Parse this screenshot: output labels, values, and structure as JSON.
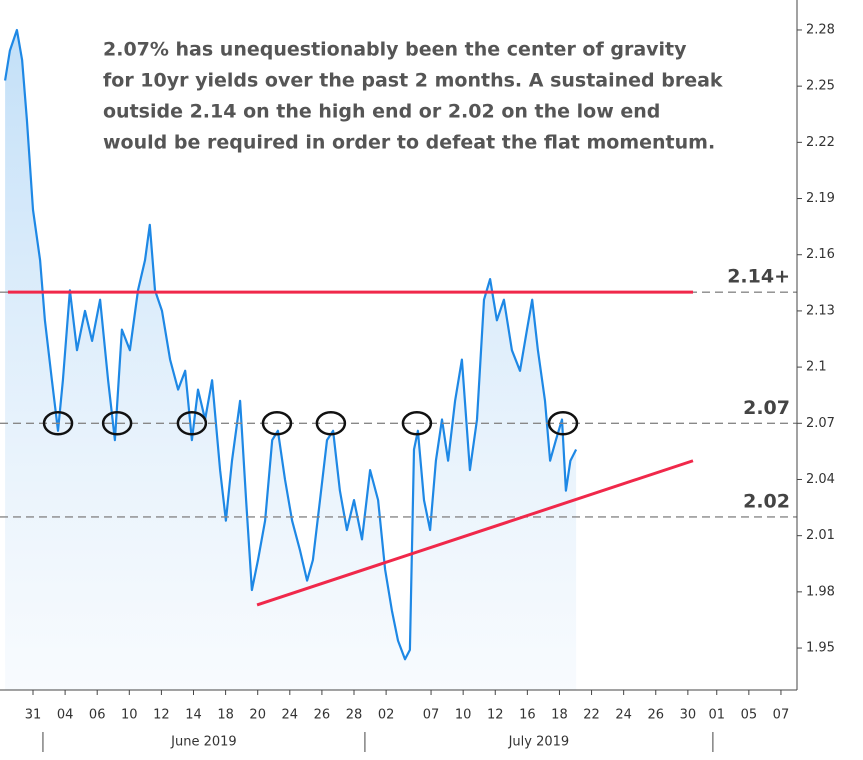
{
  "chart_data": {
    "type": "line",
    "annotation": [
      "2.07% has unequestionably been the center of gravity",
      "for 10yr yields over the past 2 months.  A sustained break",
      "outside 2.14 on the high end or 2.02 on the low end",
      "would be required in order to defeat the flat momentum."
    ],
    "x": [
      -0.87,
      -0.72,
      -0.5,
      -0.34,
      -0.19,
      0,
      0.22,
      0.37,
      0.59,
      0.78,
      0.93,
      1.15,
      1.37,
      1.62,
      1.84,
      2.09,
      2.34,
      2.55,
      2.77,
      3.02,
      3.27,
      3.49,
      3.64,
      3.8,
      4.02,
      4.27,
      4.52,
      4.74,
      4.95,
      5.14,
      5.36,
      5.58,
      5.83,
      6.01,
      6.2,
      6.45,
      6.64,
      6.82,
      7.01,
      7.23,
      7.45,
      7.63,
      7.85,
      8.07,
      8.32,
      8.54,
      8.72,
      8.94,
      9.16,
      9.35,
      9.56,
      9.78,
      10,
      10.25,
      10.5,
      10.75,
      10.97,
      11.18,
      11.37,
      11.59,
      11.74,
      11.87,
      11.99,
      12.18,
      12.37,
      12.55,
      12.74,
      12.93,
      13.15,
      13.36,
      13.61,
      13.83,
      14.05,
      14.24,
      14.45,
      14.67,
      14.92,
      15.17,
      15.39,
      15.55,
      15.73,
      15.95,
      16.11,
      16.29,
      16.48,
      16.6,
      16.74,
      16.92
    ],
    "values": [
      2.253,
      2.269,
      2.28,
      2.264,
      2.232,
      2.184,
      2.157,
      2.125,
      2.093,
      2.066,
      2.093,
      2.141,
      2.109,
      2.13,
      2.114,
      2.136,
      2.093,
      2.061,
      2.12,
      2.109,
      2.141,
      2.157,
      2.176,
      2.141,
      2.13,
      2.104,
      2.088,
      2.098,
      2.061,
      2.088,
      2.072,
      2.093,
      2.045,
      2.018,
      2.05,
      2.082,
      2.029,
      1.981,
      1.997,
      2.018,
      2.061,
      2.066,
      2.04,
      2.018,
      2.002,
      1.986,
      1.997,
      2.029,
      2.061,
      2.066,
      2.034,
      2.013,
      2.029,
      2.008,
      2.045,
      2.029,
      1.992,
      1.97,
      1.954,
      1.944,
      1.949,
      2.056,
      2.066,
      2.029,
      2.013,
      2.05,
      2.072,
      2.05,
      2.082,
      2.104,
      2.045,
      2.072,
      2.136,
      2.147,
      2.125,
      2.136,
      2.109,
      2.098,
      2.12,
      2.136,
      2.109,
      2.082,
      2.05,
      2.061,
      2.072,
      2.034,
      2.05,
      2.056
    ],
    "color": "#1e88e5",
    "xlim": [
      -1.028,
      23.8
    ],
    "xticks": [
      {
        "value": 0,
        "label": "31"
      },
      {
        "value": 1,
        "label": "04"
      },
      {
        "value": 2,
        "label": "06"
      },
      {
        "value": 3,
        "label": "10"
      },
      {
        "value": 4,
        "label": "12"
      },
      {
        "value": 5,
        "label": "14"
      },
      {
        "value": 6,
        "label": "18"
      },
      {
        "value": 7,
        "label": "20"
      },
      {
        "value": 8,
        "label": "24"
      },
      {
        "value": 9,
        "label": "26"
      },
      {
        "value": 10,
        "label": "28"
      },
      {
        "value": 11,
        "label": "02"
      },
      {
        "value": 12.4,
        "label": "07"
      },
      {
        "value": 13.4,
        "label": "10"
      },
      {
        "value": 14.4,
        "label": "12"
      },
      {
        "value": 15.4,
        "label": "16"
      },
      {
        "value": 16.4,
        "label": "18"
      },
      {
        "value": 17.4,
        "label": "22"
      },
      {
        "value": 18.4,
        "label": "24"
      },
      {
        "value": 19.4,
        "label": "26"
      },
      {
        "value": 20.4,
        "label": "30"
      },
      {
        "value": 21.3,
        "label": "01"
      },
      {
        "value": 22.3,
        "label": "05"
      },
      {
        "value": 23.3,
        "label": "07"
      }
    ],
    "ylim": [
      1.9276,
      2.296
    ],
    "yticks": [
      2.28,
      2.25,
      2.22,
      2.19,
      2.16,
      2.13,
      2.1,
      2.07,
      2.04,
      2.01,
      1.98,
      1.95
    ],
    "months": [
      "June 2019",
      "July 2019"
    ],
    "month_bounds": [
      0.31,
      10.34,
      21.18
    ],
    "levels": [
      {
        "value": 2.14,
        "label": "2.14+"
      },
      2.07,
      2.02
    ],
    "red_lines": [
      {
        "x": [
          -0.78,
          20.56
        ],
        "y": [
          2.14,
          2.14
        ]
      },
      {
        "x": [
          6.98,
          20.56
        ],
        "y": [
          1.973,
          2.05
        ]
      }
    ],
    "red_color": "#f0284a",
    "circles": [
      {
        "x": 0.78,
        "y": 2.07
      },
      {
        "x": 2.62,
        "y": 2.07
      },
      {
        "x": 4.95,
        "y": 2.07
      },
      {
        "x": 7.6,
        "y": 2.07
      },
      {
        "x": 9.28,
        "y": 2.07
      },
      {
        "x": 11.96,
        "y": 2.07
      },
      {
        "x": 16.51,
        "y": 2.07
      }
    ]
  }
}
